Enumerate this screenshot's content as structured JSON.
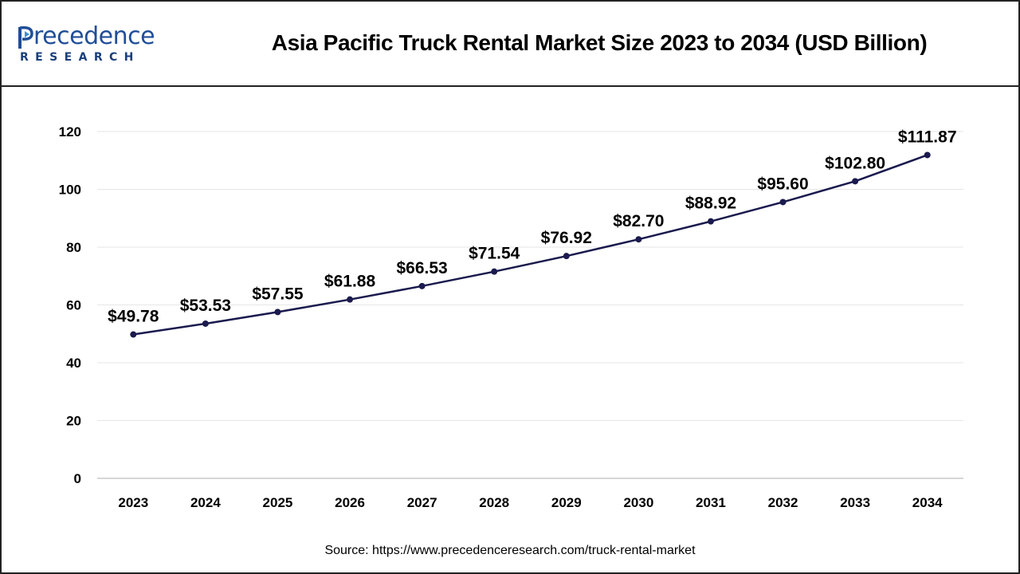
{
  "header": {
    "logo_word": "recedence",
    "logo_tagline": "RESEARCH",
    "logo_text_lettering": "Precedence",
    "brand_color": "#1f4e99",
    "title": "Asia Pacific Truck Rental Market Size 2023 to 2034 (USD Billion)"
  },
  "footer": {
    "source": "Source: https://www.precedenceresearch.com/truck-rental-market"
  },
  "chart_data": {
    "type": "line",
    "title": "Asia Pacific Truck Rental Market Size 2023 to 2034 (USD Billion)",
    "xlabel": "",
    "ylabel": "",
    "categories": [
      "2023",
      "2024",
      "2025",
      "2026",
      "2027",
      "2028",
      "2029",
      "2030",
      "2031",
      "2032",
      "2033",
      "2034"
    ],
    "series": [
      {
        "values": [
          49.78,
          53.53,
          57.55,
          61.88,
          66.53,
          71.54,
          76.92,
          82.7,
          88.92,
          95.6,
          102.8,
          111.87
        ],
        "labels": [
          "$49.78",
          "$53.53",
          "$57.55",
          "$61.88",
          "$66.53",
          "$71.54",
          "$76.92",
          "$82.70",
          "$88.92",
          "$95.60",
          "$102.80",
          "$111.87"
        ],
        "color": "#1a1a4e"
      }
    ],
    "ylim": [
      0,
      120
    ],
    "yticks": [
      0,
      20,
      40,
      60,
      80,
      100,
      120
    ],
    "grid": true,
    "legend": "none"
  }
}
